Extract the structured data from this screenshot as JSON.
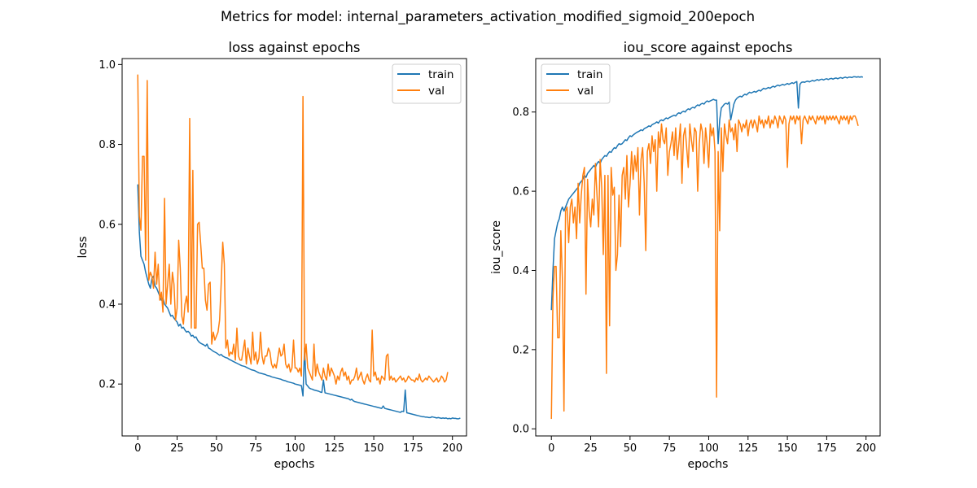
{
  "figure": {
    "suptitle": "Metrics for model: internal_parameters_activation_modified_sigmoid_200epoch"
  },
  "chart_data": [
    {
      "type": "line",
      "title": "loss against epochs",
      "xlabel": "epochs",
      "ylabel": "loss",
      "xlim": [
        -9.95,
        208.95
      ],
      "ylim": [
        0.07,
        1.015
      ],
      "xticks": [
        0,
        25,
        50,
        75,
        100,
        125,
        150,
        175,
        200
      ],
      "yticks": [
        0.2,
        0.4,
        0.6,
        0.8,
        1.0
      ],
      "ytick_labels": [
        "0.2",
        "0.4",
        "0.6",
        "0.8",
        "1.0"
      ],
      "grid": false,
      "legend": "upper right",
      "series": [
        {
          "name": "train",
          "color": "#1f77b4",
          "x_start": 0,
          "values": [
            0.7,
            0.58,
            0.52,
            0.51,
            0.5,
            0.48,
            0.465,
            0.45,
            0.44,
            0.465,
            0.47,
            0.445,
            0.44,
            0.43,
            0.42,
            0.41,
            0.415,
            0.4,
            0.395,
            0.39,
            0.38,
            0.37,
            0.372,
            0.365,
            0.36,
            0.355,
            0.345,
            0.35,
            0.34,
            0.342,
            0.335,
            0.33,
            0.332,
            0.328,
            0.32,
            0.322,
            0.316,
            0.318,
            0.31,
            0.305,
            0.302,
            0.3,
            0.298,
            0.295,
            0.3,
            0.29,
            0.288,
            0.285,
            0.282,
            0.28,
            0.278,
            0.275,
            0.272,
            0.274,
            0.27,
            0.268,
            0.266,
            0.265,
            0.262,
            0.26,
            0.258,
            0.256,
            0.254,
            0.252,
            0.25,
            0.248,
            0.246,
            0.245,
            0.244,
            0.242,
            0.24,
            0.238,
            0.236,
            0.235,
            0.234,
            0.232,
            0.23,
            0.228,
            0.227,
            0.226,
            0.225,
            0.224,
            0.222,
            0.221,
            0.22,
            0.218,
            0.217,
            0.216,
            0.215,
            0.214,
            0.213,
            0.212,
            0.21,
            0.209,
            0.208,
            0.206,
            0.205,
            0.204,
            0.203,
            0.202,
            0.2,
            0.199,
            0.198,
            0.197,
            0.196,
            0.17,
            0.29,
            0.2,
            0.195,
            0.19,
            0.188,
            0.187,
            0.185,
            0.184,
            0.183,
            0.182,
            0.18,
            0.179,
            0.21,
            0.178,
            0.177,
            0.176,
            0.175,
            0.174,
            0.173,
            0.172,
            0.171,
            0.17,
            0.169,
            0.168,
            0.167,
            0.166,
            0.165,
            0.164,
            0.163,
            0.16,
            0.162,
            0.158,
            0.156,
            0.155,
            0.154,
            0.153,
            0.152,
            0.151,
            0.15,
            0.149,
            0.148,
            0.147,
            0.146,
            0.145,
            0.144,
            0.143,
            0.142,
            0.141,
            0.14,
            0.139,
            0.145,
            0.139,
            0.138,
            0.137,
            0.136,
            0.135,
            0.134,
            0.133,
            0.132,
            0.131,
            0.13,
            0.129,
            0.132,
            0.131,
            0.185,
            0.128,
            0.127,
            0.126,
            0.125,
            0.124,
            0.123,
            0.122,
            0.121,
            0.12,
            0.119,
            0.118,
            0.118,
            0.117,
            0.117,
            0.116,
            0.116,
            0.118,
            0.117,
            0.116,
            0.115,
            0.116,
            0.115,
            0.114,
            0.115,
            0.114,
            0.115,
            0.113,
            0.114,
            0.113,
            0.115,
            0.114,
            0.114,
            0.113,
            0.113,
            0.115
          ]
        },
        {
          "name": "val",
          "color": "#ff7f0e",
          "x_start": 0,
          "values": [
            0.975,
            0.62,
            0.585,
            0.77,
            0.77,
            0.51,
            0.96,
            0.46,
            0.48,
            0.47,
            0.44,
            0.53,
            0.45,
            0.5,
            0.41,
            0.43,
            0.38,
            0.665,
            0.4,
            0.45,
            0.5,
            0.4,
            0.48,
            0.45,
            0.36,
            0.39,
            0.56,
            0.49,
            0.37,
            0.35,
            0.4,
            0.42,
            0.38,
            0.865,
            0.34,
            0.735,
            0.34,
            0.34,
            0.6,
            0.605,
            0.55,
            0.49,
            0.49,
            0.41,
            0.385,
            0.45,
            0.455,
            0.3,
            0.33,
            0.31,
            0.32,
            0.33,
            0.36,
            0.45,
            0.555,
            0.5,
            0.29,
            0.31,
            0.27,
            0.28,
            0.275,
            0.3,
            0.26,
            0.34,
            0.27,
            0.26,
            0.26,
            0.285,
            0.31,
            0.25,
            0.29,
            0.27,
            0.25,
            0.33,
            0.26,
            0.28,
            0.25,
            0.265,
            0.33,
            0.27,
            0.25,
            0.27,
            0.27,
            0.29,
            0.28,
            0.25,
            0.24,
            0.25,
            0.24,
            0.265,
            0.29,
            0.27,
            0.275,
            0.3,
            0.25,
            0.24,
            0.25,
            0.23,
            0.24,
            0.31,
            0.24,
            0.24,
            0.23,
            0.24,
            0.22,
            0.92,
            0.26,
            0.3,
            0.24,
            0.23,
            0.22,
            0.21,
            0.3,
            0.22,
            0.25,
            0.23,
            0.22,
            0.21,
            0.24,
            0.22,
            0.21,
            0.25,
            0.22,
            0.24,
            0.23,
            0.22,
            0.2,
            0.22,
            0.21,
            0.23,
            0.24,
            0.22,
            0.23,
            0.21,
            0.22,
            0.2,
            0.21,
            0.21,
            0.22,
            0.24,
            0.21,
            0.22,
            0.23,
            0.21,
            0.2,
            0.215,
            0.225,
            0.21,
            0.205,
            0.335,
            0.22,
            0.23,
            0.21,
            0.215,
            0.2,
            0.22,
            0.215,
            0.21,
            0.27,
            0.275,
            0.21,
            0.22,
            0.21,
            0.215,
            0.205,
            0.21,
            0.215,
            0.22,
            0.21,
            0.215,
            0.205,
            0.21,
            0.22,
            0.215,
            0.21,
            0.21,
            0.205,
            0.215,
            0.21,
            0.225,
            0.21,
            0.205,
            0.21,
            0.215,
            0.21,
            0.22,
            0.215,
            0.21,
            0.205,
            0.21,
            0.215,
            0.205,
            0.21,
            0.22,
            0.215,
            0.205,
            0.21,
            0.23
          ]
        }
      ]
    },
    {
      "type": "line",
      "title": "iou_score against epochs",
      "xlabel": "epochs",
      "ylabel": "iou_score",
      "xlim": [
        -9.95,
        208.95
      ],
      "ylim": [
        -0.018,
        0.935
      ],
      "xticks": [
        0,
        25,
        50,
        75,
        100,
        125,
        150,
        175,
        200
      ],
      "yticks": [
        0.0,
        0.2,
        0.4,
        0.6,
        0.8
      ],
      "ytick_labels": [
        "0.0",
        "0.2",
        "0.4",
        "0.6",
        "0.8"
      ],
      "grid": false,
      "legend": "upper left",
      "series": [
        {
          "name": "train",
          "color": "#1f77b4",
          "x_start": 0,
          "values": [
            0.3,
            0.4,
            0.48,
            0.5,
            0.52,
            0.53,
            0.55,
            0.56,
            0.55,
            0.56,
            0.57,
            0.58,
            0.585,
            0.59,
            0.595,
            0.6,
            0.605,
            0.61,
            0.62,
            0.625,
            0.63,
            0.64,
            0.635,
            0.645,
            0.65,
            0.655,
            0.66,
            0.665,
            0.66,
            0.67,
            0.675,
            0.67,
            0.68,
            0.685,
            0.69,
            0.688,
            0.695,
            0.7,
            0.698,
            0.705,
            0.71,
            0.708,
            0.715,
            0.72,
            0.718,
            0.72,
            0.725,
            0.73,
            0.728,
            0.735,
            0.74,
            0.738,
            0.742,
            0.745,
            0.748,
            0.75,
            0.752,
            0.755,
            0.753,
            0.758,
            0.76,
            0.762,
            0.765,
            0.763,
            0.768,
            0.77,
            0.772,
            0.775,
            0.772,
            0.778,
            0.78,
            0.778,
            0.782,
            0.785,
            0.783,
            0.786,
            0.788,
            0.79,
            0.792,
            0.79,
            0.795,
            0.798,
            0.796,
            0.8,
            0.802,
            0.8,
            0.805,
            0.808,
            0.806,
            0.81,
            0.812,
            0.81,
            0.815,
            0.818,
            0.816,
            0.82,
            0.822,
            0.82,
            0.825,
            0.828,
            0.826,
            0.828,
            0.83,
            0.832,
            0.83,
            0.83,
            0.72,
            0.78,
            0.81,
            0.815,
            0.82,
            0.822,
            0.82,
            0.825,
            0.78,
            0.8,
            0.82,
            0.83,
            0.835,
            0.838,
            0.84,
            0.838,
            0.842,
            0.845,
            0.843,
            0.847,
            0.85,
            0.848,
            0.85,
            0.852,
            0.85,
            0.853,
            0.855,
            0.853,
            0.857,
            0.86,
            0.858,
            0.86,
            0.862,
            0.86,
            0.863,
            0.865,
            0.863,
            0.866,
            0.868,
            0.866,
            0.868,
            0.87,
            0.868,
            0.87,
            0.872,
            0.87,
            0.872,
            0.874,
            0.872,
            0.875,
            0.877,
            0.81,
            0.87,
            0.875,
            0.876,
            0.875,
            0.877,
            0.878,
            0.876,
            0.878,
            0.88,
            0.878,
            0.88,
            0.882,
            0.88,
            0.882,
            0.883,
            0.881,
            0.883,
            0.884,
            0.882,
            0.884,
            0.885,
            0.883,
            0.885,
            0.886,
            0.884,
            0.886,
            0.887,
            0.885,
            0.887,
            0.888,
            0.886,
            0.888,
            0.888,
            0.887,
            0.889,
            0.889,
            0.888,
            0.889,
            0.888,
            0.889,
            0.888
          ]
        },
        {
          "name": "val",
          "color": "#ff7f0e",
          "x_start": 0,
          "values": [
            0.025,
            0.33,
            0.41,
            0.41,
            0.23,
            0.23,
            0.5,
            0.38,
            0.045,
            0.55,
            0.56,
            0.47,
            0.56,
            0.58,
            0.52,
            0.56,
            0.48,
            0.62,
            0.52,
            0.59,
            0.64,
            0.66,
            0.34,
            0.63,
            0.55,
            0.51,
            0.58,
            0.54,
            0.67,
            0.59,
            0.51,
            0.68,
            0.61,
            0.44,
            0.64,
            0.14,
            0.64,
            0.26,
            0.66,
            0.59,
            0.61,
            0.4,
            0.44,
            0.59,
            0.46,
            0.64,
            0.66,
            0.58,
            0.69,
            0.56,
            0.62,
            0.7,
            0.63,
            0.69,
            0.65,
            0.71,
            0.54,
            0.68,
            0.71,
            0.62,
            0.45,
            0.7,
            0.72,
            0.67,
            0.74,
            0.7,
            0.73,
            0.6,
            0.75,
            0.71,
            0.77,
            0.73,
            0.72,
            0.76,
            0.64,
            0.7,
            0.72,
            0.75,
            0.69,
            0.76,
            0.68,
            0.72,
            0.77,
            0.62,
            0.74,
            0.76,
            0.71,
            0.66,
            0.77,
            0.73,
            0.7,
            0.76,
            0.75,
            0.6,
            0.72,
            0.77,
            0.75,
            0.67,
            0.76,
            0.72,
            0.66,
            0.77,
            0.74,
            0.76,
            0.7,
            0.08,
            0.7,
            0.5,
            0.76,
            0.65,
            0.77,
            0.74,
            0.72,
            0.78,
            0.75,
            0.76,
            0.73,
            0.77,
            0.7,
            0.78,
            0.77,
            0.75,
            0.77,
            0.76,
            0.78,
            0.74,
            0.77,
            0.78,
            0.76,
            0.78,
            0.77,
            0.75,
            0.79,
            0.77,
            0.78,
            0.76,
            0.78,
            0.77,
            0.79,
            0.76,
            0.78,
            0.77,
            0.79,
            0.78,
            0.76,
            0.79,
            0.78,
            0.77,
            0.79,
            0.78,
            0.66,
            0.77,
            0.79,
            0.78,
            0.79,
            0.77,
            0.79,
            0.78,
            0.79,
            0.72,
            0.78,
            0.79,
            0.78,
            0.77,
            0.79,
            0.78,
            0.79,
            0.78,
            0.77,
            0.79,
            0.78,
            0.79,
            0.78,
            0.79,
            0.77,
            0.79,
            0.78,
            0.79,
            0.78,
            0.79,
            0.78,
            0.79,
            0.78,
            0.77,
            0.79,
            0.78,
            0.79,
            0.78,
            0.79,
            0.77,
            0.79,
            0.78,
            0.79,
            0.79,
            0.78,
            0.765
          ]
        }
      ]
    }
  ]
}
